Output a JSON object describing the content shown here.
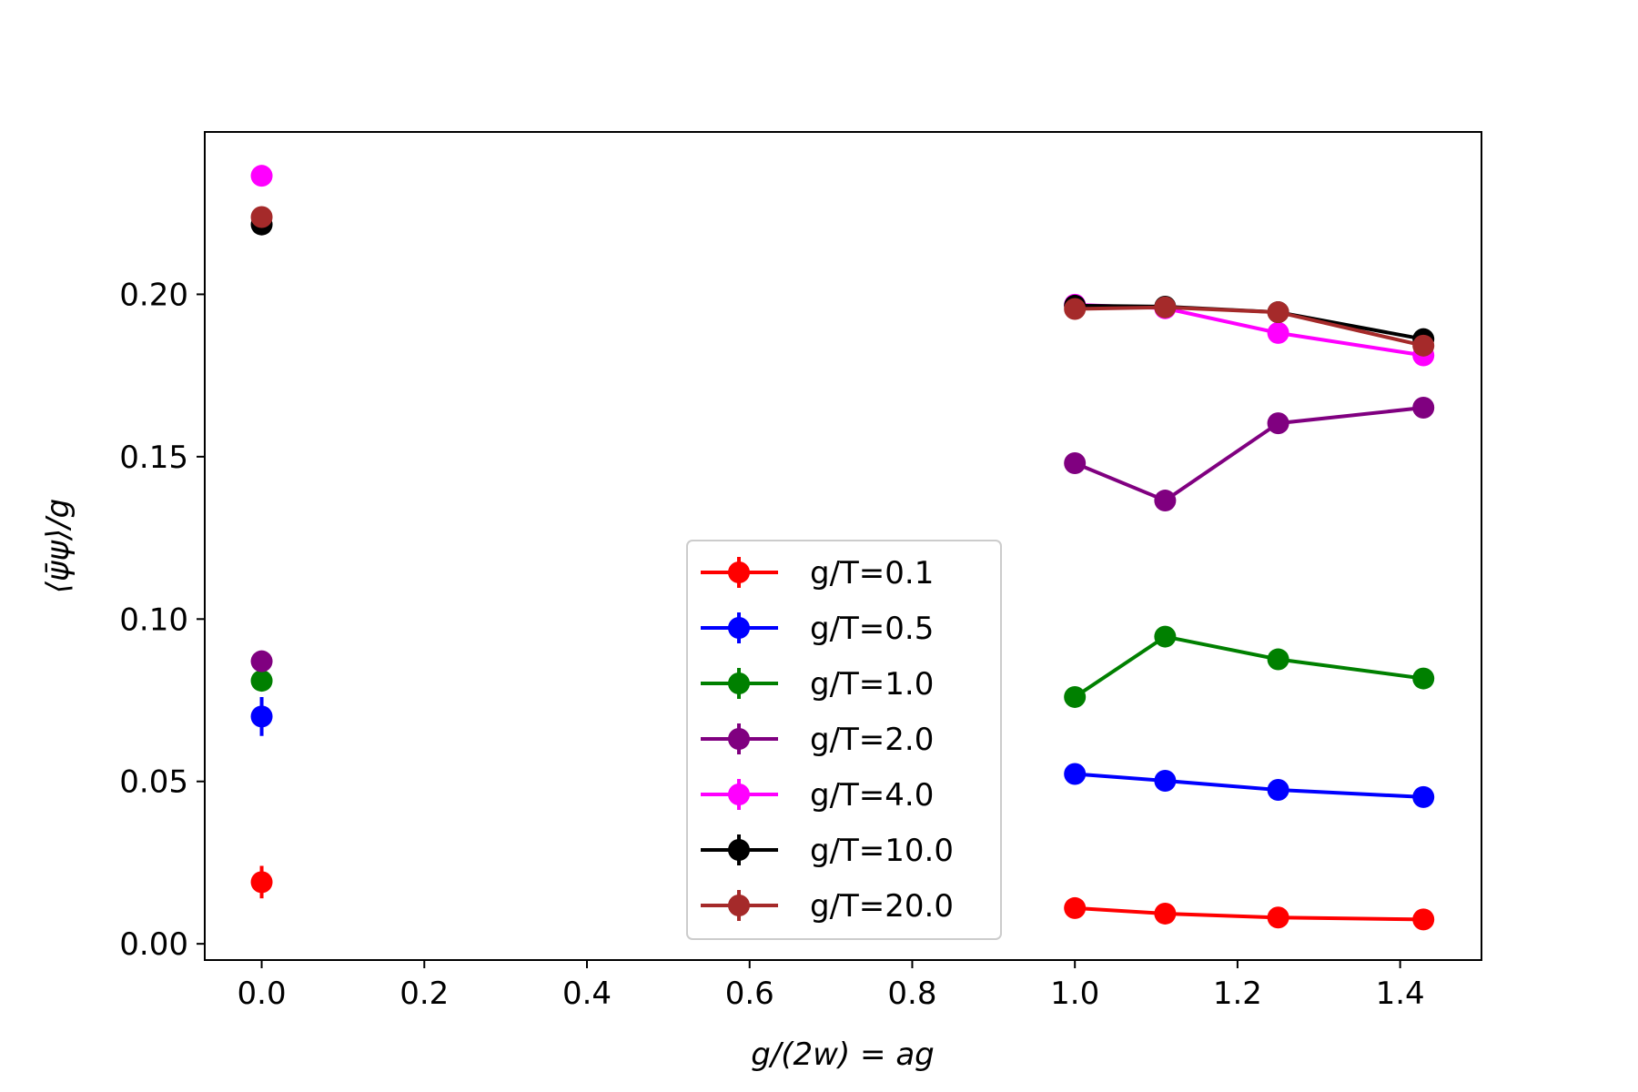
{
  "chart_data": {
    "type": "line",
    "title": "",
    "xlabel": "g/(2w) = ag",
    "ylabel": "⟨ψ̄ψ⟩/g",
    "xlim": [
      -0.07,
      1.5
    ],
    "ylim": [
      -0.005,
      0.25
    ],
    "xticks": [
      0.0,
      0.2,
      0.4,
      0.6,
      0.8,
      1.0,
      1.2,
      1.4
    ],
    "xtick_labels": [
      "0.0",
      "0.2",
      "0.4",
      "0.6",
      "0.8",
      "1.0",
      "1.2",
      "1.4"
    ],
    "yticks": [
      0.0,
      0.05,
      0.1,
      0.15,
      0.2
    ],
    "ytick_labels": [
      "0.00",
      "0.05",
      "0.10",
      "0.15",
      "0.20"
    ],
    "grid": false,
    "legend_position": "bottom-center",
    "series": [
      {
        "name": "g/T=0.1",
        "color": "#ff0000",
        "continuum": {
          "x": 0.0,
          "y": 0.019,
          "err": 0.005
        },
        "x": [
          1.0,
          1.111,
          1.25,
          1.4286
        ],
        "y": [
          0.011,
          0.0093,
          0.0081,
          0.0075
        ]
      },
      {
        "name": "g/T=0.5",
        "color": "#0000ff",
        "continuum": {
          "x": 0.0,
          "y": 0.07,
          "err": 0.006
        },
        "x": [
          1.0,
          1.111,
          1.25,
          1.4286
        ],
        "y": [
          0.0523,
          0.0502,
          0.0474,
          0.0452
        ]
      },
      {
        "name": "g/T=1.0",
        "color": "#008000",
        "continuum": {
          "x": 0.0,
          "y": 0.081,
          "err": 0.002
        },
        "x": [
          1.0,
          1.111,
          1.25,
          1.4286
        ],
        "y": [
          0.076,
          0.0946,
          0.0876,
          0.0817
        ]
      },
      {
        "name": "g/T=2.0",
        "color": "#800080",
        "continuum": {
          "x": 0.0,
          "y": 0.087,
          "err": 0.001
        },
        "x": [
          1.0,
          1.111,
          1.25,
          1.4286
        ],
        "y": [
          0.148,
          0.1365,
          0.1603,
          0.1651
        ]
      },
      {
        "name": "g/T=4.0",
        "color": "#ff00ff",
        "continuum": {
          "x": 0.0,
          "y": 0.2365,
          "err": 0.001
        },
        "x": [
          1.0,
          1.111,
          1.25,
          1.4286
        ],
        "y": [
          0.1968,
          0.1957,
          0.1881,
          0.1812
        ]
      },
      {
        "name": "g/T=10.0",
        "color": "#000000",
        "continuum": {
          "x": 0.0,
          "y": 0.2215,
          "err": 0.001
        },
        "x": [
          1.0,
          1.111,
          1.25,
          1.4286
        ],
        "y": [
          0.1965,
          0.1962,
          0.1945,
          0.1862
        ]
      },
      {
        "name": "g/T=20.0",
        "color": "#a52a2a",
        "continuum": {
          "x": 0.0,
          "y": 0.2238,
          "err": 0.001
        },
        "x": [
          1.0,
          1.111,
          1.25,
          1.4286
        ],
        "y": [
          0.1955,
          0.196,
          0.1945,
          0.1842
        ]
      }
    ]
  }
}
